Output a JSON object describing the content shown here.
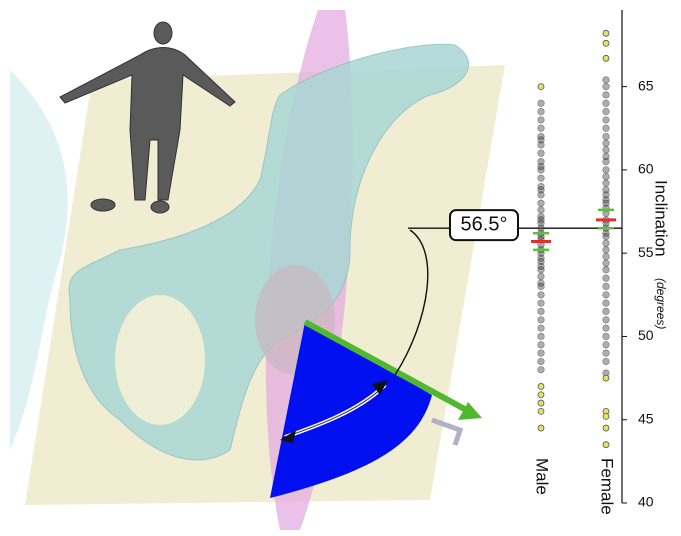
{
  "chart_data": {
    "type": "strip",
    "categories": [
      "Male",
      "Female"
    ],
    "y_label": "Inclination",
    "y_unit": "(degrees)",
    "ylim": [
      40,
      69.6
    ],
    "yticks": [
      40,
      45,
      50,
      55,
      60,
      65
    ],
    "point_color": "#4a4a4a",
    "outlier_color": "#e6df6a",
    "mean_color": "#e0302a",
    "ci_color": "#59c23a",
    "values": [
      [
        64,
        63.5,
        63,
        62.5,
        62,
        61.8,
        61.5,
        61,
        60.5,
        60.2,
        60,
        59.5,
        59,
        58.8,
        58.5,
        58,
        57.6,
        57.2,
        57,
        56.8,
        56.5,
        56.2,
        56,
        55.8,
        55.5,
        55.2,
        55,
        54.7,
        54.5,
        54.2,
        54,
        53.6,
        53.2,
        53,
        52.5,
        52,
        51.5,
        51,
        50.5,
        50,
        49.5,
        49,
        48.5,
        48
      ],
      [
        65.4,
        65,
        64.5,
        64,
        63.5,
        63,
        62.5,
        62,
        61.6,
        61.2,
        60.8,
        60.5,
        60,
        59.6,
        59.2,
        58.8,
        58.5,
        58.2,
        58,
        57.7,
        57.4,
        57,
        56.8,
        56.5,
        56.2,
        56,
        55.6,
        55.2,
        54.8,
        54.4,
        54,
        53.5,
        53,
        52.5,
        52,
        51.5,
        51,
        50.5,
        50,
        49.5,
        49,
        48.5,
        47.8
      ]
    ],
    "outliers": [
      [
        65,
        47,
        46.5,
        46,
        45.5,
        44.5
      ],
      [
        68.2,
        67.6,
        66.7,
        47.5,
        45.5,
        45.2,
        44.5,
        43.5
      ]
    ],
    "means": [
      55.7,
      57.0
    ],
    "ci": [
      [
        55.2,
        56.2
      ],
      [
        56.5,
        57.6
      ]
    ],
    "reference": {
      "value": 56.5,
      "label": "56.5°"
    }
  }
}
